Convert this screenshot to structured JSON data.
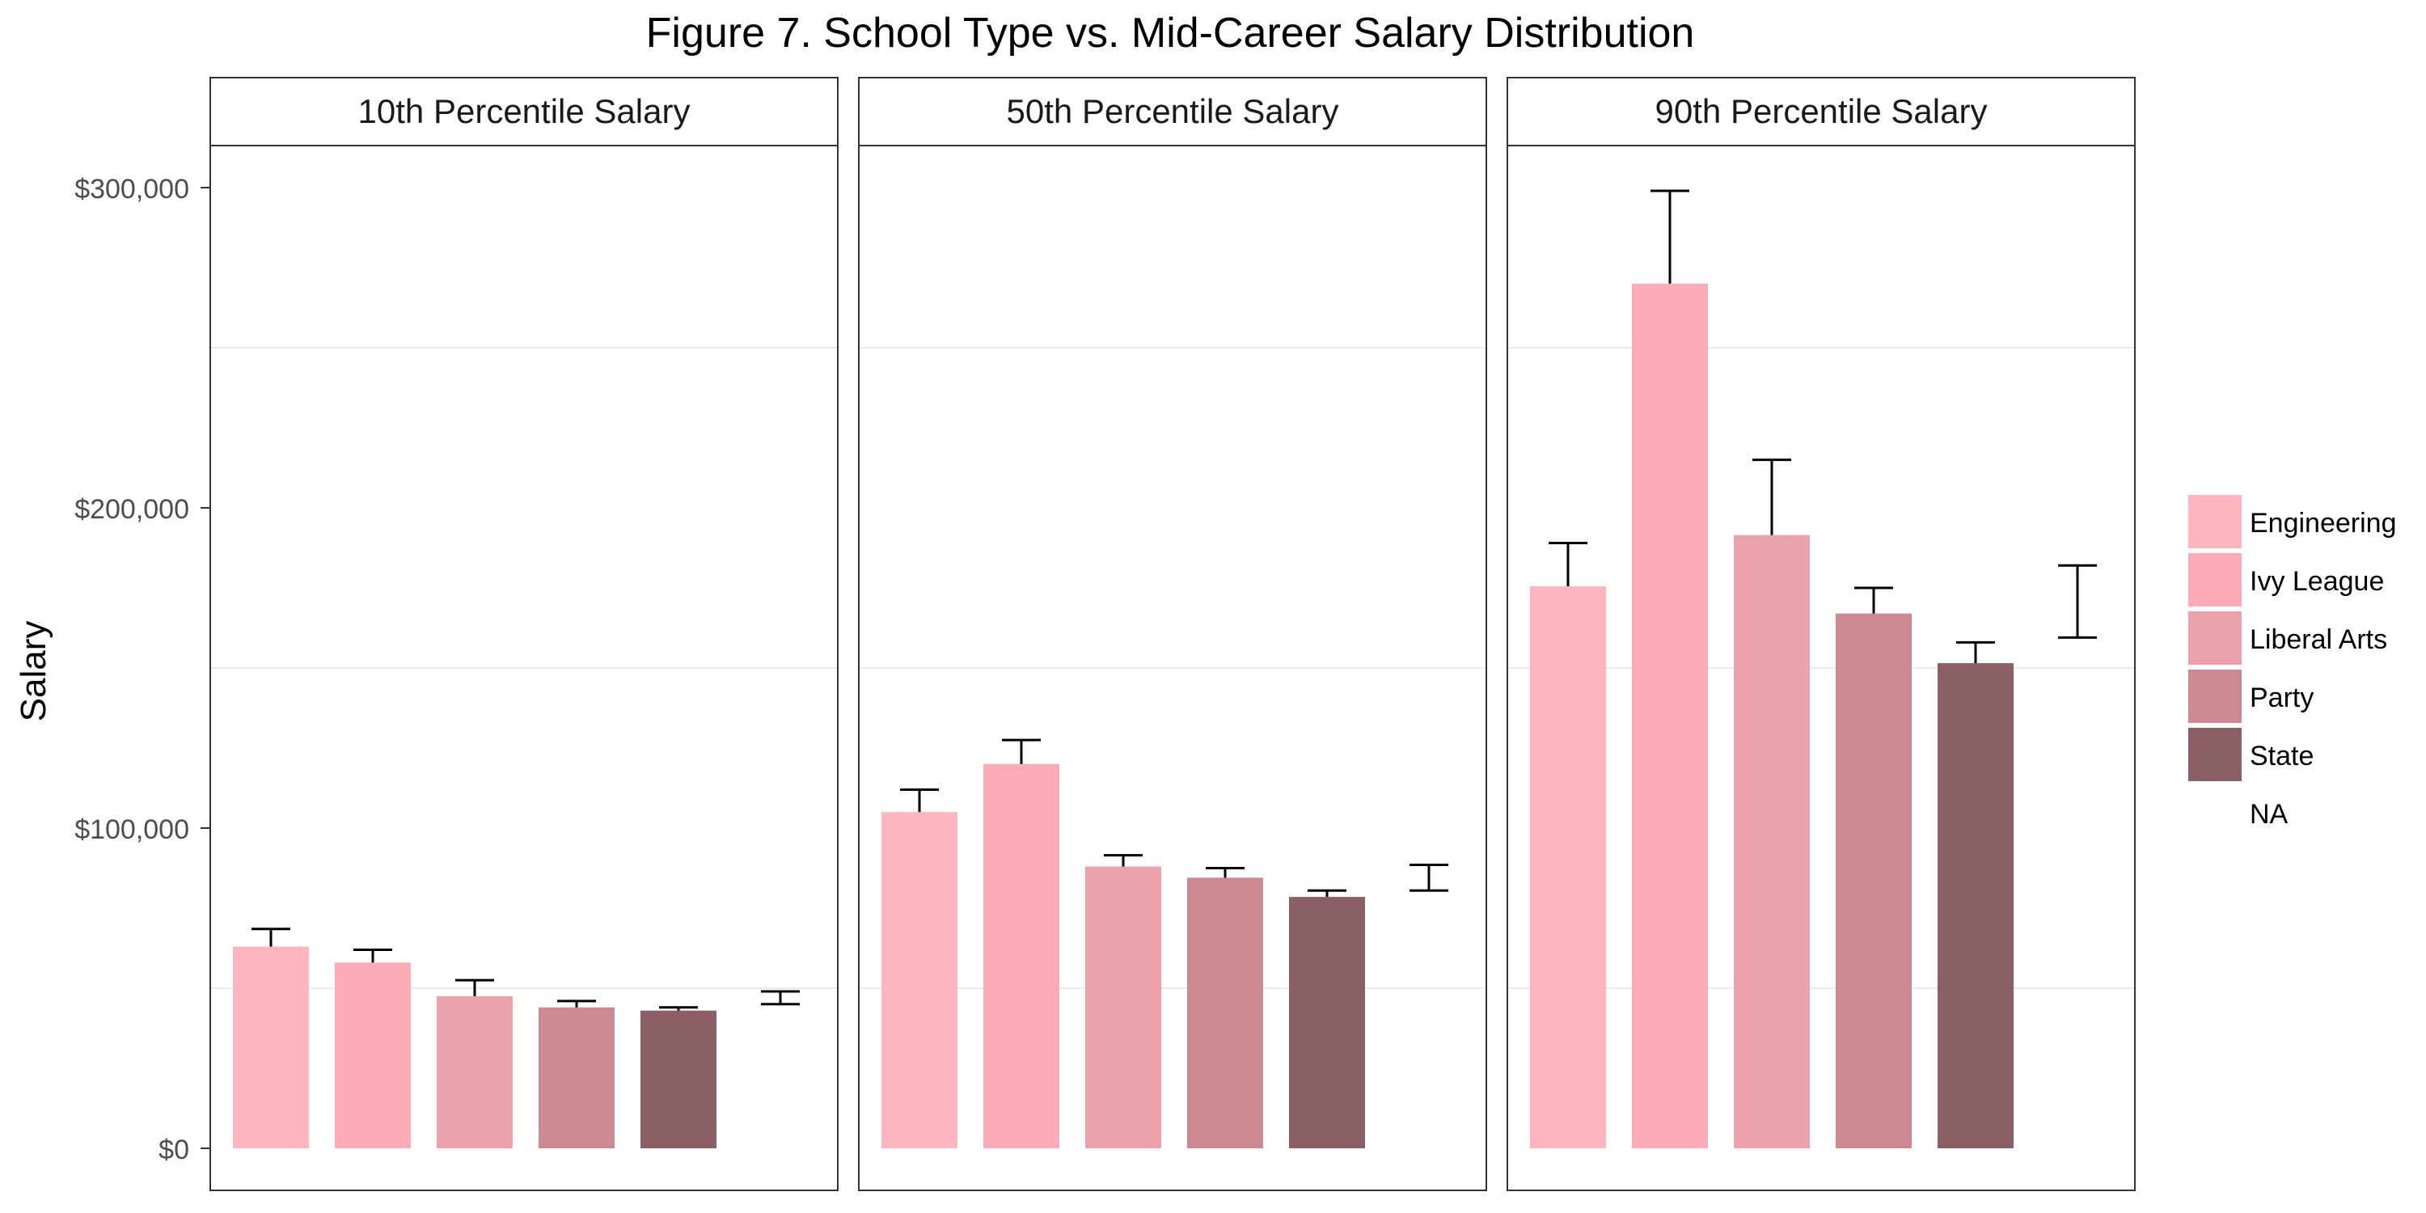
{
  "chart_data": {
    "type": "bar",
    "title": "Figure 7. School Type vs. Mid-Career Salary Distribution",
    "ylabel": "Salary",
    "xlabel": "",
    "ylim": [
      0,
      315000
    ],
    "y_ticks": [
      {
        "value": 0,
        "label": "$0"
      },
      {
        "value": 100000,
        "label": "$100,000"
      },
      {
        "value": 200000,
        "label": "$200,000"
      },
      {
        "value": 300000,
        "label": "$300,000"
      }
    ],
    "minor_gridlines": [
      50000,
      150000,
      250000
    ],
    "categories": [
      "Engineering",
      "Ivy League",
      "Liberal Arts",
      "Party",
      "State",
      "NA"
    ],
    "colors": [
      "#FFB6C1",
      "#FFABB7",
      "#EBA2AA",
      "#CC8992",
      "#8B5F66",
      "transparent"
    ],
    "legend_position": "right",
    "facets": [
      {
        "title": "10th Percentile Salary",
        "values": [
          63000,
          58000,
          47500,
          44000,
          43000,
          null
        ],
        "error_upper": [
          68500,
          62000,
          52500,
          46000,
          44000,
          49000
        ],
        "error_lower": [
          null,
          null,
          null,
          null,
          null,
          45000
        ]
      },
      {
        "title": "50th Percentile Salary",
        "values": [
          105000,
          120000,
          88000,
          84500,
          78500,
          null
        ],
        "error_upper": [
          112000,
          127500,
          91500,
          87500,
          80500,
          88500
        ],
        "error_lower": [
          null,
          null,
          null,
          null,
          null,
          80500
        ]
      },
      {
        "title": "90th Percentile Salary",
        "values": [
          175500,
          270000,
          191500,
          167000,
          151500,
          null
        ],
        "error_upper": [
          189000,
          299000,
          215000,
          175000,
          158000,
          182000
        ],
        "error_lower": [
          null,
          null,
          null,
          null,
          null,
          159500
        ]
      }
    ]
  }
}
